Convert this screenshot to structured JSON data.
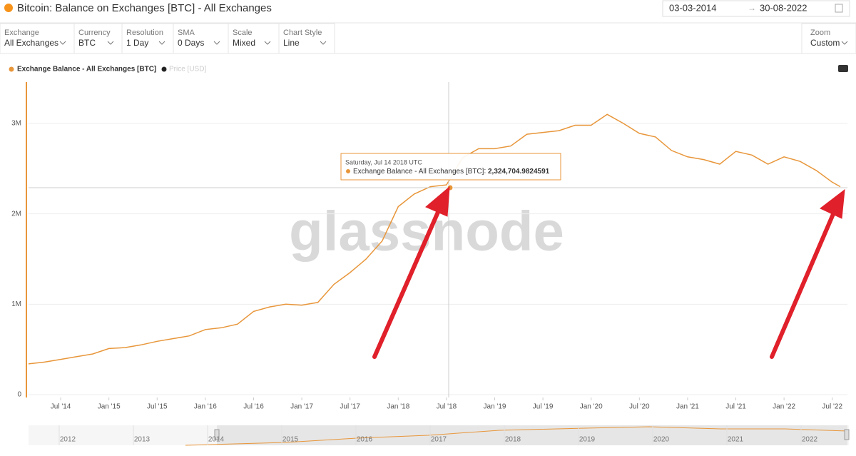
{
  "header": {
    "title": "Bitcoin: Balance on Exchanges [BTC] - All Exchanges",
    "start_date": "03-03-2014",
    "end_date": "30-08-2022"
  },
  "controls": [
    {
      "label": "Exchange",
      "value": "All Exchanges"
    },
    {
      "label": "Currency",
      "value": "BTC"
    },
    {
      "label": "Resolution",
      "value": "1 Day"
    },
    {
      "label": "SMA",
      "value": "0 Days"
    },
    {
      "label": "Scale",
      "value": "Mixed"
    },
    {
      "label": "Chart Style",
      "value": "Line"
    },
    {
      "label": "Zoom",
      "value": "Custom"
    }
  ],
  "navigator_years": [
    "2012",
    "2013",
    "2014",
    "2015",
    "2016",
    "2017",
    "2018",
    "2019",
    "2020",
    "2021",
    "2022"
  ],
  "chart_data": {
    "type": "line",
    "watermark": "glassnode",
    "inactive_series": "Price [USD]",
    "tooltip": {
      "date": "Saturday, Jul 14 2018 UTC",
      "series": "Exchange Balance - All Exchanges [BTC]",
      "value": "2,324,704.9824591"
    },
    "x": [
      "2014-03",
      "2014-05",
      "2014-07",
      "2014-09",
      "2014-11",
      "2015-01",
      "2015-03",
      "2015-05",
      "2015-07",
      "2015-09",
      "2015-11",
      "2016-01",
      "2016-03",
      "2016-05",
      "2016-07",
      "2016-09",
      "2016-11",
      "2017-01",
      "2017-03",
      "2017-05",
      "2017-07",
      "2017-09",
      "2017-11",
      "2018-01",
      "2018-03",
      "2018-05",
      "2018-07",
      "2018-09",
      "2018-11",
      "2019-01",
      "2019-03",
      "2019-05",
      "2019-07",
      "2019-09",
      "2019-11",
      "2020-01",
      "2020-03",
      "2020-05",
      "2020-07",
      "2020-09",
      "2020-11",
      "2021-01",
      "2021-03",
      "2021-05",
      "2021-07",
      "2021-09",
      "2021-11",
      "2022-01",
      "2022-03",
      "2022-05",
      "2022-07",
      "2022-08"
    ],
    "series": [
      {
        "name": "Exchange Balance - All Exchanges [BTC]",
        "color": "#e8963a",
        "values": [
          340000,
          360000,
          390000,
          420000,
          450000,
          510000,
          520000,
          550000,
          590000,
          620000,
          650000,
          720000,
          740000,
          780000,
          920000,
          970000,
          1000000,
          990000,
          1020000,
          1220000,
          1350000,
          1500000,
          1700000,
          2080000,
          2220000,
          2300000,
          2320000,
          2620000,
          2720000,
          2720000,
          2750000,
          2880000,
          2900000,
          2920000,
          2980000,
          2980000,
          3100000,
          3000000,
          2890000,
          2850000,
          2700000,
          2630000,
          2600000,
          2550000,
          2690000,
          2650000,
          2550000,
          2630000,
          2580000,
          2480000,
          2350000,
          2300000
        ]
      }
    ],
    "xlim": [
      "2014-03",
      "2022-08"
    ],
    "xticks": [
      {
        "value": "2014-07",
        "label": "Jul '14"
      },
      {
        "value": "2015-01",
        "label": "Jan '15"
      },
      {
        "value": "2015-07",
        "label": "Jul '15"
      },
      {
        "value": "2016-01",
        "label": "Jan '16"
      },
      {
        "value": "2016-07",
        "label": "Jul '16"
      },
      {
        "value": "2017-01",
        "label": "Jan '17"
      },
      {
        "value": "2017-07",
        "label": "Jul '17"
      },
      {
        "value": "2018-01",
        "label": "Jan '18"
      },
      {
        "value": "2018-07",
        "label": "Jul '18"
      },
      {
        "value": "2019-01",
        "label": "Jan '19"
      },
      {
        "value": "2019-07",
        "label": "Jul '19"
      },
      {
        "value": "2020-01",
        "label": "Jan '20"
      },
      {
        "value": "2020-07",
        "label": "Jul '20"
      },
      {
        "value": "2021-01",
        "label": "Jan '21"
      },
      {
        "value": "2021-07",
        "label": "Jul '21"
      },
      {
        "value": "2022-01",
        "label": "Jan '22"
      },
      {
        "value": "2022-07",
        "label": "Jul '22"
      }
    ],
    "ylim": [
      0,
      3470000
    ],
    "yticks": [
      0,
      {
        "value": 1000000,
        "label": "1M"
      },
      {
        "value": 2000000,
        "label": "2M"
      },
      {
        "value": 3000000,
        "label": "3M"
      }
    ],
    "grid": true
  }
}
